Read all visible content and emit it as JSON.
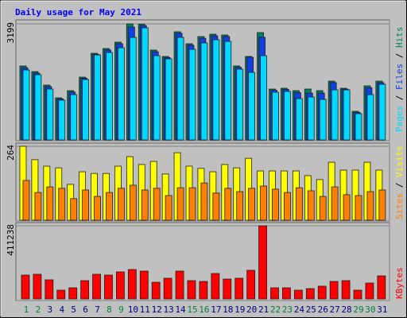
{
  "chart_data": {
    "type": "bar",
    "title": "Daily usage for May 2021",
    "categories": [
      "1",
      "2",
      "3",
      "4",
      "5",
      "6",
      "7",
      "8",
      "9",
      "10",
      "11",
      "12",
      "13",
      "14",
      "15",
      "16",
      "17",
      "18",
      "19",
      "20",
      "21",
      "22",
      "23",
      "24",
      "25",
      "26",
      "27",
      "28",
      "29",
      "30",
      "31"
    ],
    "category_colors": [
      "#008040",
      "#008040",
      "#000080",
      "#000080",
      "#000080",
      "#000080",
      "#000080",
      "#008040",
      "#008040",
      "#000080",
      "#000080",
      "#000080",
      "#000080",
      "#000080",
      "#008040",
      "#008040",
      "#000080",
      "#000080",
      "#000080",
      "#000080",
      "#000080",
      "#008040",
      "#008040",
      "#000080",
      "#000080",
      "#000080",
      "#000080",
      "#000080",
      "#008040",
      "#008040",
      "#000080"
    ],
    "legend_separator": " / ",
    "panels": [
      {
        "ylim": [
          0,
          3199
        ],
        "yticks": [
          3199
        ],
        "series": [
          {
            "name": "Hits",
            "color": "#00805c",
            "values": [
              2038,
              1884,
              1512,
              1161,
              1358,
              1731,
              2388,
              2520,
              2695,
              3199,
              3190,
              2476,
              2300,
              2980,
              2651,
              2848,
              2914,
              2892,
              2038,
              2300,
              2958,
              1402,
              1424,
              1358,
              1402,
              1358,
              1621,
              1424,
              789,
              1490,
              1621
            ]
          },
          {
            "name": "Files",
            "color": "#1040e0",
            "values": [
              1990,
              1840,
              1470,
              1130,
              1320,
              1700,
              2360,
              2480,
              2650,
              3110,
              3150,
              2430,
              2270,
              2940,
              2610,
              2800,
              2870,
              2850,
              2000,
              2280,
              2830,
              1370,
              1390,
              1300,
              1290,
              1290,
              1580,
              1400,
              760,
              1440,
              1580
            ]
          },
          {
            "name": "Pages",
            "color": "#00d8ff",
            "values": [
              1928,
              1797,
              1402,
              1096,
              1249,
              1665,
              2344,
              2410,
              2542,
              2826,
              3089,
              2322,
              2235,
              2826,
              2498,
              2673,
              2761,
              2717,
              1950,
              1862,
              2322,
              1315,
              1337,
              1139,
              1183,
              1117,
              1380,
              1380,
              723,
              1249,
              1534
            ]
          }
        ]
      },
      {
        "ylim": [
          0,
          264
        ],
        "yticks": [
          264
        ],
        "series": [
          {
            "name": "Visits",
            "color": "#ffff00",
            "values": [
              264,
              216,
              193,
              187,
              128,
              173,
              167,
              167,
              193,
              227,
              199,
              210,
              165,
              241,
              193,
              185,
              173,
              199,
              187,
              221,
              176,
              176,
              176,
              176,
              159,
              145,
              207,
              179,
              179,
              207,
              179
            ]
          },
          {
            "name": "Sites",
            "color": "#ff8000",
            "values": [
              142,
              99,
              119,
              114,
              77,
              108,
              85,
              99,
              114,
              125,
              108,
              114,
              88,
              116,
              116,
              133,
              97,
              114,
              102,
              114,
              122,
              111,
              99,
              116,
              105,
              85,
              119,
              91,
              88,
              102,
              108
            ]
          }
        ]
      },
      {
        "ylim": [
          0,
          411238
        ],
        "yticks": [
          411238
        ],
        "series": [
          {
            "name": "KBytes",
            "color": "#ff0000",
            "values": [
              134100,
              138570,
              107280,
              49170,
              62580,
              102810,
              138570,
              134100,
              151980,
              165390,
              156450,
              93870,
              116220,
              156450,
              102810,
              98340,
              143040,
              111750,
              116220,
              160920,
              411238,
              62580,
              62580,
              49170,
              58110,
              71520,
              98340,
              102810,
              49170,
              89400,
              129630
            ]
          }
        ]
      }
    ]
  }
}
